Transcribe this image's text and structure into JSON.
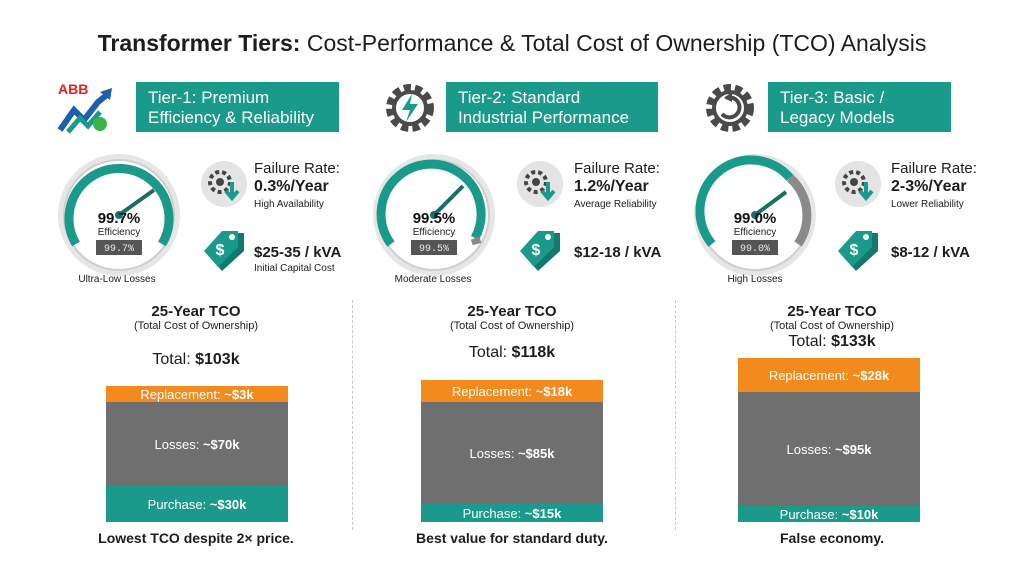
{
  "title": {
    "bold": "Transformer Tiers:",
    "rest": " Cost-Performance & Total Cost of Ownership (TCO) Analysis"
  },
  "logo_text": "ABB",
  "colors": {
    "teal": "#1a9a8a",
    "orange": "#f28a1e",
    "gray": "#6f6f6f",
    "dark": "#2b2b2b"
  },
  "tiers": [
    {
      "label_line1": "Tier-1: Premium",
      "label_line2": "Efficiency & Reliability",
      "efficiency": "99.7%",
      "efficiency_label": "Efficiency",
      "efficiency_digital": "99.7%",
      "gauge_value": 99.7,
      "loss_caption": "Ultra-Low Losses",
      "failure_label": "Failure Rate:",
      "failure_value": "0.3%/Year",
      "failure_sub": "High Availability",
      "price": "$25-35 / kVA",
      "price_sub": "Initial Capital Cost",
      "tco_title": "25-Year TCO",
      "tco_sub": "(Total Cost of Ownership)",
      "total_label": "Total:",
      "total_value": "$103k",
      "rep_label": "Replacement:",
      "rep_value": "~$3k",
      "loss_label": "Losses:",
      "loss_value": "~$70k",
      "pur_label": "Purchase:",
      "pur_value": "~$30k",
      "footer": "Lowest TCO despite 2× price."
    },
    {
      "label_line1": "Tier-2: Standard",
      "label_line2": "Industrial Performance",
      "efficiency": "99.5%",
      "efficiency_label": "Efficiency",
      "efficiency_digital": "99.5%",
      "gauge_value": 99.5,
      "loss_caption": "Moderate Losses",
      "failure_label": "Failure Rate:",
      "failure_value": "1.2%/Year",
      "failure_sub": "Average Reliability",
      "price": "$12-18 / kVA",
      "price_sub": "",
      "tco_title": "25-Year TCO",
      "tco_sub": "(Total Cost of Ownership)",
      "total_label": "Total:",
      "total_value": "$118k",
      "rep_label": "Replacement:",
      "rep_value": "~$18k",
      "loss_label": "Losses:",
      "loss_value": "~$85k",
      "pur_label": "Purchase:",
      "pur_value": "~$15k",
      "footer": "Best value for standard duty."
    },
    {
      "label_line1": "Tier-3: Basic /",
      "label_line2": "Legacy Models",
      "efficiency": "99.0%",
      "efficiency_label": "Efficiency",
      "efficiency_digital": "99.0%",
      "gauge_value": 99.0,
      "loss_caption": "High Losses",
      "failure_label": "Failure Rate:",
      "failure_value": "2-3%/Year",
      "failure_sub": "Lower Reliability",
      "price": "$8-12 / kVA",
      "price_sub": "",
      "tco_title": "25-Year TCO",
      "tco_sub": "(Total Cost of Ownership)",
      "total_label": "Total:",
      "total_value": "$133k",
      "rep_label": "Replacement:",
      "rep_value": "~$28k",
      "loss_label": "Losses:",
      "loss_value": "~$95k",
      "pur_label": "Purchase:",
      "pur_value": "~$10k",
      "footer": "False economy."
    }
  ],
  "chart_data": {
    "type": "bar",
    "stacked": true,
    "title": "25-Year TCO (Total Cost of Ownership)",
    "categories": [
      "Tier-1",
      "Tier-2",
      "Tier-3"
    ],
    "unit": "$k",
    "series": [
      {
        "name": "Purchase",
        "values": [
          30,
          15,
          10
        ]
      },
      {
        "name": "Losses",
        "values": [
          70,
          85,
          95
        ]
      },
      {
        "name": "Replacement",
        "values": [
          3,
          18,
          28
        ]
      }
    ],
    "totals": [
      103,
      118,
      133
    ]
  }
}
